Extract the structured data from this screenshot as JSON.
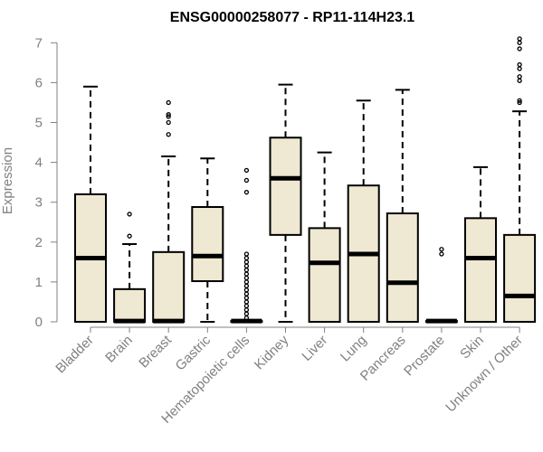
{
  "chart_data": {
    "type": "boxplot",
    "title": "ENSG00000258077 - RP11-114H23.1",
    "ylabel": "Expression",
    "xlabel": "",
    "ylim": [
      0,
      7
    ],
    "yticks": [
      0,
      1,
      2,
      3,
      4,
      5,
      6,
      7
    ],
    "grid": false,
    "box_fill": "#efe8d2",
    "categories": [
      "Bladder",
      "Brain",
      "Breast",
      "Gastric",
      "Hematopoietic cells",
      "Kidney",
      "Liver",
      "Lung",
      "Pancreas",
      "Prostate",
      "Skin",
      "Unknown / Other"
    ],
    "boxes": [
      {
        "name": "Bladder",
        "min": 0,
        "q1": 0,
        "median": 1.6,
        "q3": 3.2,
        "max": 5.9,
        "outliers": []
      },
      {
        "name": "Brain",
        "min": 0,
        "q1": 0,
        "median": 0.02,
        "q3": 0.82,
        "max": 1.95,
        "outliers": [
          2.15,
          2.7
        ]
      },
      {
        "name": "Breast",
        "min": 0,
        "q1": 0,
        "median": 0.02,
        "q3": 1.75,
        "max": 4.15,
        "outliers": [
          4.7,
          5.0,
          5.15,
          5.2,
          5.5
        ]
      },
      {
        "name": "Gastric",
        "min": 0,
        "q1": 1.02,
        "median": 1.65,
        "q3": 2.88,
        "max": 4.1,
        "outliers": []
      },
      {
        "name": "Hematopoietic cells",
        "min": 0,
        "q1": 0,
        "median": 0.02,
        "q3": 0.02,
        "max": 0.02,
        "outliers": [
          0.1,
          0.2,
          0.3,
          0.4,
          0.5,
          0.6,
          0.7,
          0.8,
          0.9,
          1.0,
          1.1,
          1.2,
          1.3,
          1.4,
          1.5,
          1.6,
          1.7,
          3.25,
          3.55,
          3.8
        ]
      },
      {
        "name": "Kidney",
        "min": 0,
        "q1": 2.18,
        "median": 3.6,
        "q3": 4.62,
        "max": 5.95,
        "outliers": []
      },
      {
        "name": "Liver",
        "min": 0,
        "q1": 0,
        "median": 1.48,
        "q3": 2.35,
        "max": 4.25,
        "outliers": []
      },
      {
        "name": "Lung",
        "min": 0,
        "q1": 0,
        "median": 1.7,
        "q3": 3.42,
        "max": 5.55,
        "outliers": []
      },
      {
        "name": "Pancreas",
        "min": 0,
        "q1": 0,
        "median": 0.98,
        "q3": 2.72,
        "max": 5.82,
        "outliers": []
      },
      {
        "name": "Prostate",
        "min": 0,
        "q1": 0,
        "median": 0.02,
        "q3": 0.02,
        "max": 0.02,
        "outliers": [
          1.7,
          1.82
        ]
      },
      {
        "name": "Skin",
        "min": 0,
        "q1": 0,
        "median": 1.6,
        "q3": 2.6,
        "max": 3.88,
        "outliers": []
      },
      {
        "name": "Unknown / Other",
        "min": 0,
        "q1": 0,
        "median": 0.65,
        "q3": 2.18,
        "max": 5.28,
        "outliers": [
          5.5,
          5.55,
          6.05,
          6.15,
          6.35,
          6.45,
          6.85,
          7.0,
          7.1
        ]
      }
    ]
  }
}
